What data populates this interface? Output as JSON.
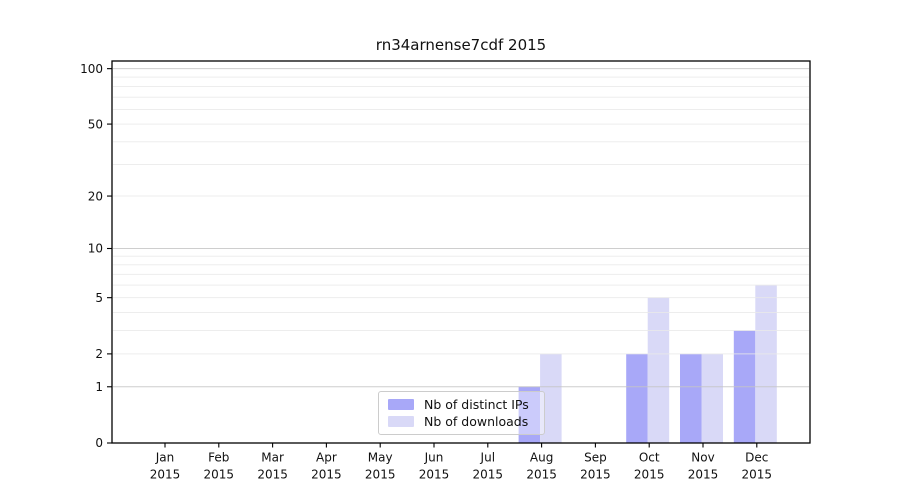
{
  "chart_data": {
    "type": "bar",
    "title": "rn34arnense7cdf 2015",
    "categories": [
      "Jan 2015",
      "Feb 2015",
      "Mar 2015",
      "Apr 2015",
      "May 2015",
      "Jun 2015",
      "Jul 2015",
      "Aug 2015",
      "Sep 2015",
      "Oct 2015",
      "Nov 2015",
      "Dec 2015"
    ],
    "series": [
      {
        "name": "Nb of distinct IPs",
        "color": "#a8a8f8",
        "values": [
          0,
          0,
          0,
          0,
          0,
          0,
          0,
          1,
          0,
          2,
          2,
          3
        ]
      },
      {
        "name": "Nb of downloads",
        "color": "#d9d9f7",
        "values": [
          0,
          0,
          0,
          0,
          0,
          0,
          0,
          2,
          0,
          5,
          2,
          6
        ]
      }
    ],
    "xlabel": "",
    "ylabel": "",
    "yscale": "log1p",
    "ylim": [
      0,
      110
    ],
    "y_ticks": [
      0,
      1,
      2,
      5,
      10,
      20,
      50,
      100
    ],
    "y_major_gridlines": [
      1,
      10,
      100
    ],
    "y_minor_gridlines": [
      2,
      3,
      4,
      5,
      6,
      7,
      8,
      9,
      20,
      30,
      40,
      50,
      60,
      70,
      80,
      90
    ],
    "grid": "horizontal",
    "legend_position": "lower center"
  },
  "colors": {
    "background": "#ffffff",
    "spine": "#000000",
    "tick_text": "#111111",
    "major_grid": "#c6c6c6",
    "minor_grid": "#e9e9e9"
  }
}
